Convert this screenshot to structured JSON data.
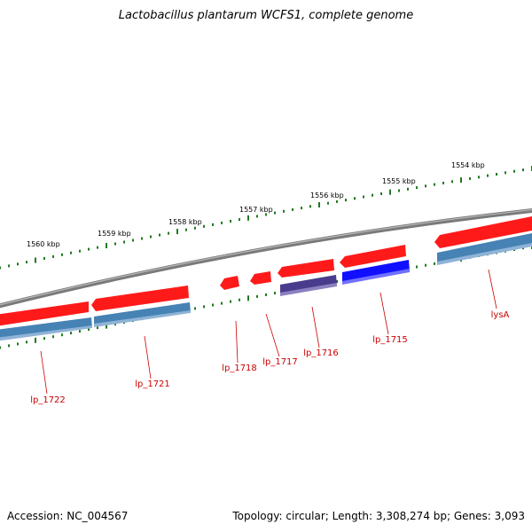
{
  "title": "Lactobacillus plantarum WCFS1, complete genome",
  "footer": {
    "accession": "Accession: NC_004567",
    "topology": "Topology: circular; Length: 3,308,274 bp; Genes: 3,093"
  },
  "colors": {
    "backbone": "#808080",
    "tick": "#1f7a1f",
    "forward_gene": "#ff1a1a",
    "reverse_cds": "#4682b4",
    "reverse_cds_selected": "#1010ff",
    "reverse_cds_dark": "#4a3c8c",
    "gene_label": "#cc0000",
    "scale_label": "#000000"
  },
  "scale_labels": [
    "1554 kbp",
    "1555 kbp",
    "1556 kbp",
    "1557 kbp",
    "1558 kbp",
    "1559 kbp",
    "1560 kbp"
  ],
  "genes": [
    {
      "label": "lp_1722",
      "strand": "reverse"
    },
    {
      "label": "lp_1721",
      "strand": "reverse"
    },
    {
      "label": "lp_1718",
      "strand": "forward"
    },
    {
      "label": "lp_1717",
      "strand": "forward"
    },
    {
      "label": "lp_1716",
      "strand": "reverse"
    },
    {
      "label": "lp_1715",
      "strand": "reverse"
    },
    {
      "label": "lysA",
      "strand": "reverse"
    }
  ]
}
